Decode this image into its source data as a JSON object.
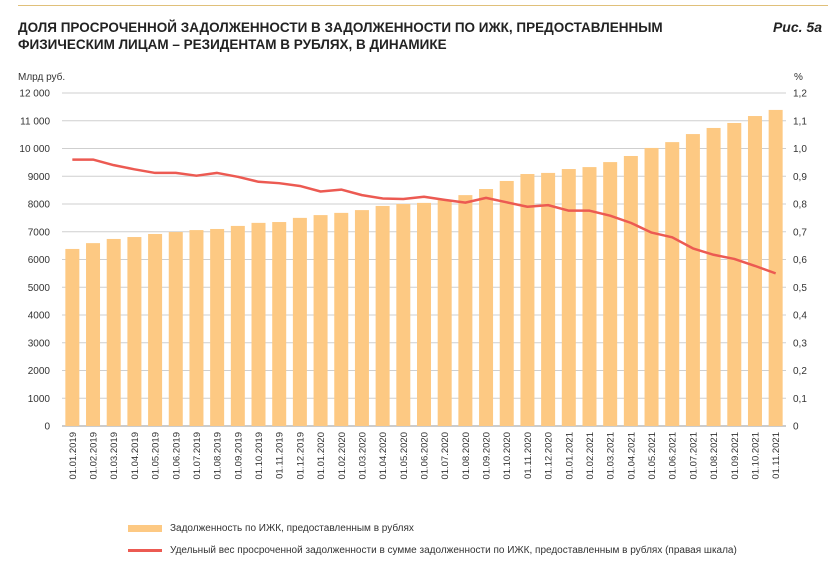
{
  "header": {
    "title": "Доля просроченной задолженности в задолженности по ИЖК, предоставленным физическим лицам – резидентам в рублях, в динамике",
    "figure_label": "Рис. 5а"
  },
  "chart_data": {
    "type": "bar+line",
    "categories": [
      "01.01.2019",
      "01.02.2019",
      "01.03.2019",
      "01.04.2019",
      "01.05.2019",
      "01.06.2019",
      "01.07.2019",
      "01.08.2019",
      "01.09.2019",
      "01.10.2019",
      "01.11.2019",
      "01.12.2019",
      "01.01.2020",
      "01.02.2020",
      "01.03.2020",
      "01.04.2020",
      "01.05.2020",
      "01.06.2020",
      "01.07.2020",
      "01.08.2020",
      "01.09.2020",
      "01.10.2020",
      "01.11.2020",
      "01.12.2020",
      "01.01.2021",
      "01.02.2021",
      "01.03.2021",
      "01.04.2021",
      "01.05.2021",
      "01.06.2021",
      "01.07.2021",
      "01.08.2021",
      "01.09.2021",
      "01.10.2021",
      "01.11.2021"
    ],
    "series": [
      {
        "name": "Задолженность по ИЖК, предоставленным в рублях",
        "type": "bar",
        "axis": "left",
        "color": "#fdc983",
        "values": [
          6380,
          6590,
          6740,
          6810,
          6920,
          6990,
          7060,
          7100,
          7210,
          7320,
          7350,
          7500,
          7600,
          7680,
          7780,
          7930,
          8000,
          8040,
          8140,
          8320,
          8540,
          8830,
          9080,
          9120,
          9260,
          9330,
          9510,
          9730,
          10020,
          10230,
          10520,
          10740,
          10920,
          11170,
          11390
        ]
      },
      {
        "name": "Удельный вес просроченной задолженности в сумме задолженности по ИЖК, предоставленным в рублях (правая шкала)",
        "type": "line",
        "axis": "right",
        "color": "#ec5a52",
        "values": [
          0.96,
          0.96,
          0.94,
          0.925,
          0.912,
          0.912,
          0.902,
          0.912,
          0.898,
          0.88,
          0.875,
          0.865,
          0.845,
          0.852,
          0.832,
          0.82,
          0.818,
          0.826,
          0.815,
          0.805,
          0.822,
          0.806,
          0.79,
          0.796,
          0.776,
          0.776,
          0.758,
          0.732,
          0.697,
          0.68,
          0.64,
          0.617,
          0.602,
          0.577,
          0.55
        ]
      }
    ],
    "ylabel": "Млрд руб.",
    "y2label": "%",
    "ylim": [
      0,
      12000
    ],
    "y2lim": [
      0,
      1.2
    ],
    "yticks": [
      "0",
      "1000",
      "2000",
      "3000",
      "4000",
      "5000",
      "6000",
      "7000",
      "8000",
      "9000",
      "10 000",
      "11 000",
      "12 000"
    ],
    "y2ticks": [
      "0",
      "0,1",
      "0,2",
      "0,3",
      "0,4",
      "0,5",
      "0,6",
      "0,7",
      "0,8",
      "0,9",
      "1,0",
      "1,1",
      "1,2"
    ],
    "grid": true,
    "legend": "bottom"
  }
}
